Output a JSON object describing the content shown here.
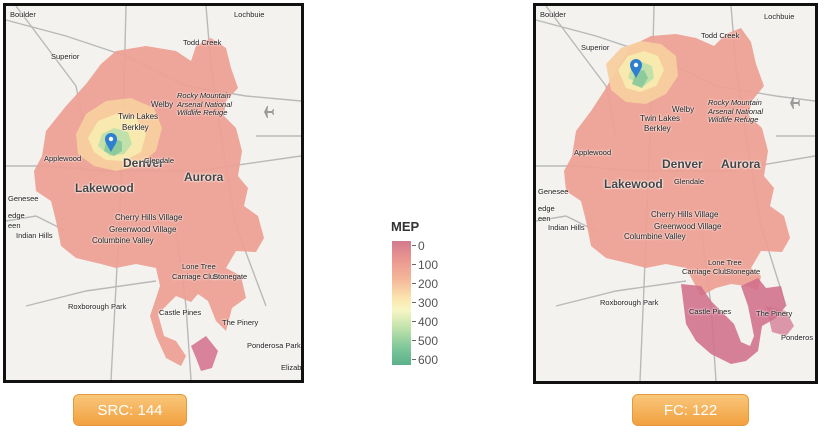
{
  "legend": {
    "title": "MEP",
    "ticks": [
      "0",
      "100",
      "200",
      "300",
      "400",
      "500",
      "600"
    ]
  },
  "panels": {
    "left": {
      "badge": "SRC: 144",
      "labels": {
        "boulder": "Boulder",
        "lochbuie": "Lochbuie",
        "todd_creek": "Todd Creek",
        "superior": "Superior",
        "welby": "Welby",
        "twin_lakes": "Twin Lakes",
        "berkley": "Berkley",
        "rocky_mountain": "Rocky Mountain\nArsenal National\nWildlife Refuge",
        "applewood": "Applewood",
        "denver": "Denver",
        "lakewood": "Lakewood",
        "glendale": "Glendale",
        "aurora": "Aurora",
        "genesee": "Genesee",
        "edge": "edge",
        "een": "een",
        "indian_hills": "Indian Hills",
        "cherry_hills": "Cherry Hills Village",
        "greenwood": "Greenwood Village",
        "columbine": "Columbine Valley",
        "lone_tree": "Lone Tree",
        "carriage_club": "Carriage Club",
        "stonegate": "Stonegate",
        "roxborough": "Roxborough Park",
        "castle_pines": "Castle Pines",
        "the_pinery": "The Pinery",
        "ponderosa_park": "Ponderosa Park",
        "elizab": "Elizab"
      }
    },
    "right": {
      "badge": "FC: 122",
      "labels": {
        "boulder": "Boulder",
        "lochbuie": "Lochbuie",
        "todd_creek": "Todd Creek",
        "superior": "Superior",
        "welby": "Welby",
        "twin_lakes": "Twin Lakes",
        "berkley": "Berkley",
        "rocky_mountain": "Rocky Mountain\nArsenal National\nWildlife Refuge",
        "applewood": "Applewood",
        "denver": "Denver",
        "lakewood": "Lakewood",
        "glendale": "Glendale",
        "aurora": "Aurora",
        "genesee": "Genesee",
        "edge": "edge",
        "een": "een",
        "indian_hills": "Indian Hills",
        "cherry_hills": "Cherry Hills Village",
        "greenwood": "Greenwood Village",
        "columbine": "Columbine Valley",
        "lone_tree": "Lone Tree",
        "carriage_club": "Carriage Club",
        "stonegate": "Stonegate",
        "roxborough": "Roxborough Park",
        "castle_pines": "Castle Pines",
        "the_pinery": "The Pinery",
        "ponderosa": "Ponderos"
      }
    }
  },
  "colors": {
    "base_region": "#ee9f93",
    "far_region": "#d26f8c",
    "near_yellow": "#f8eab0",
    "near_green": "#8ac99b",
    "marker": "#2f7fd0",
    "badge": "#f2a040"
  },
  "icons": {
    "marker": "map-pin-icon",
    "airport": "airplane-icon"
  }
}
